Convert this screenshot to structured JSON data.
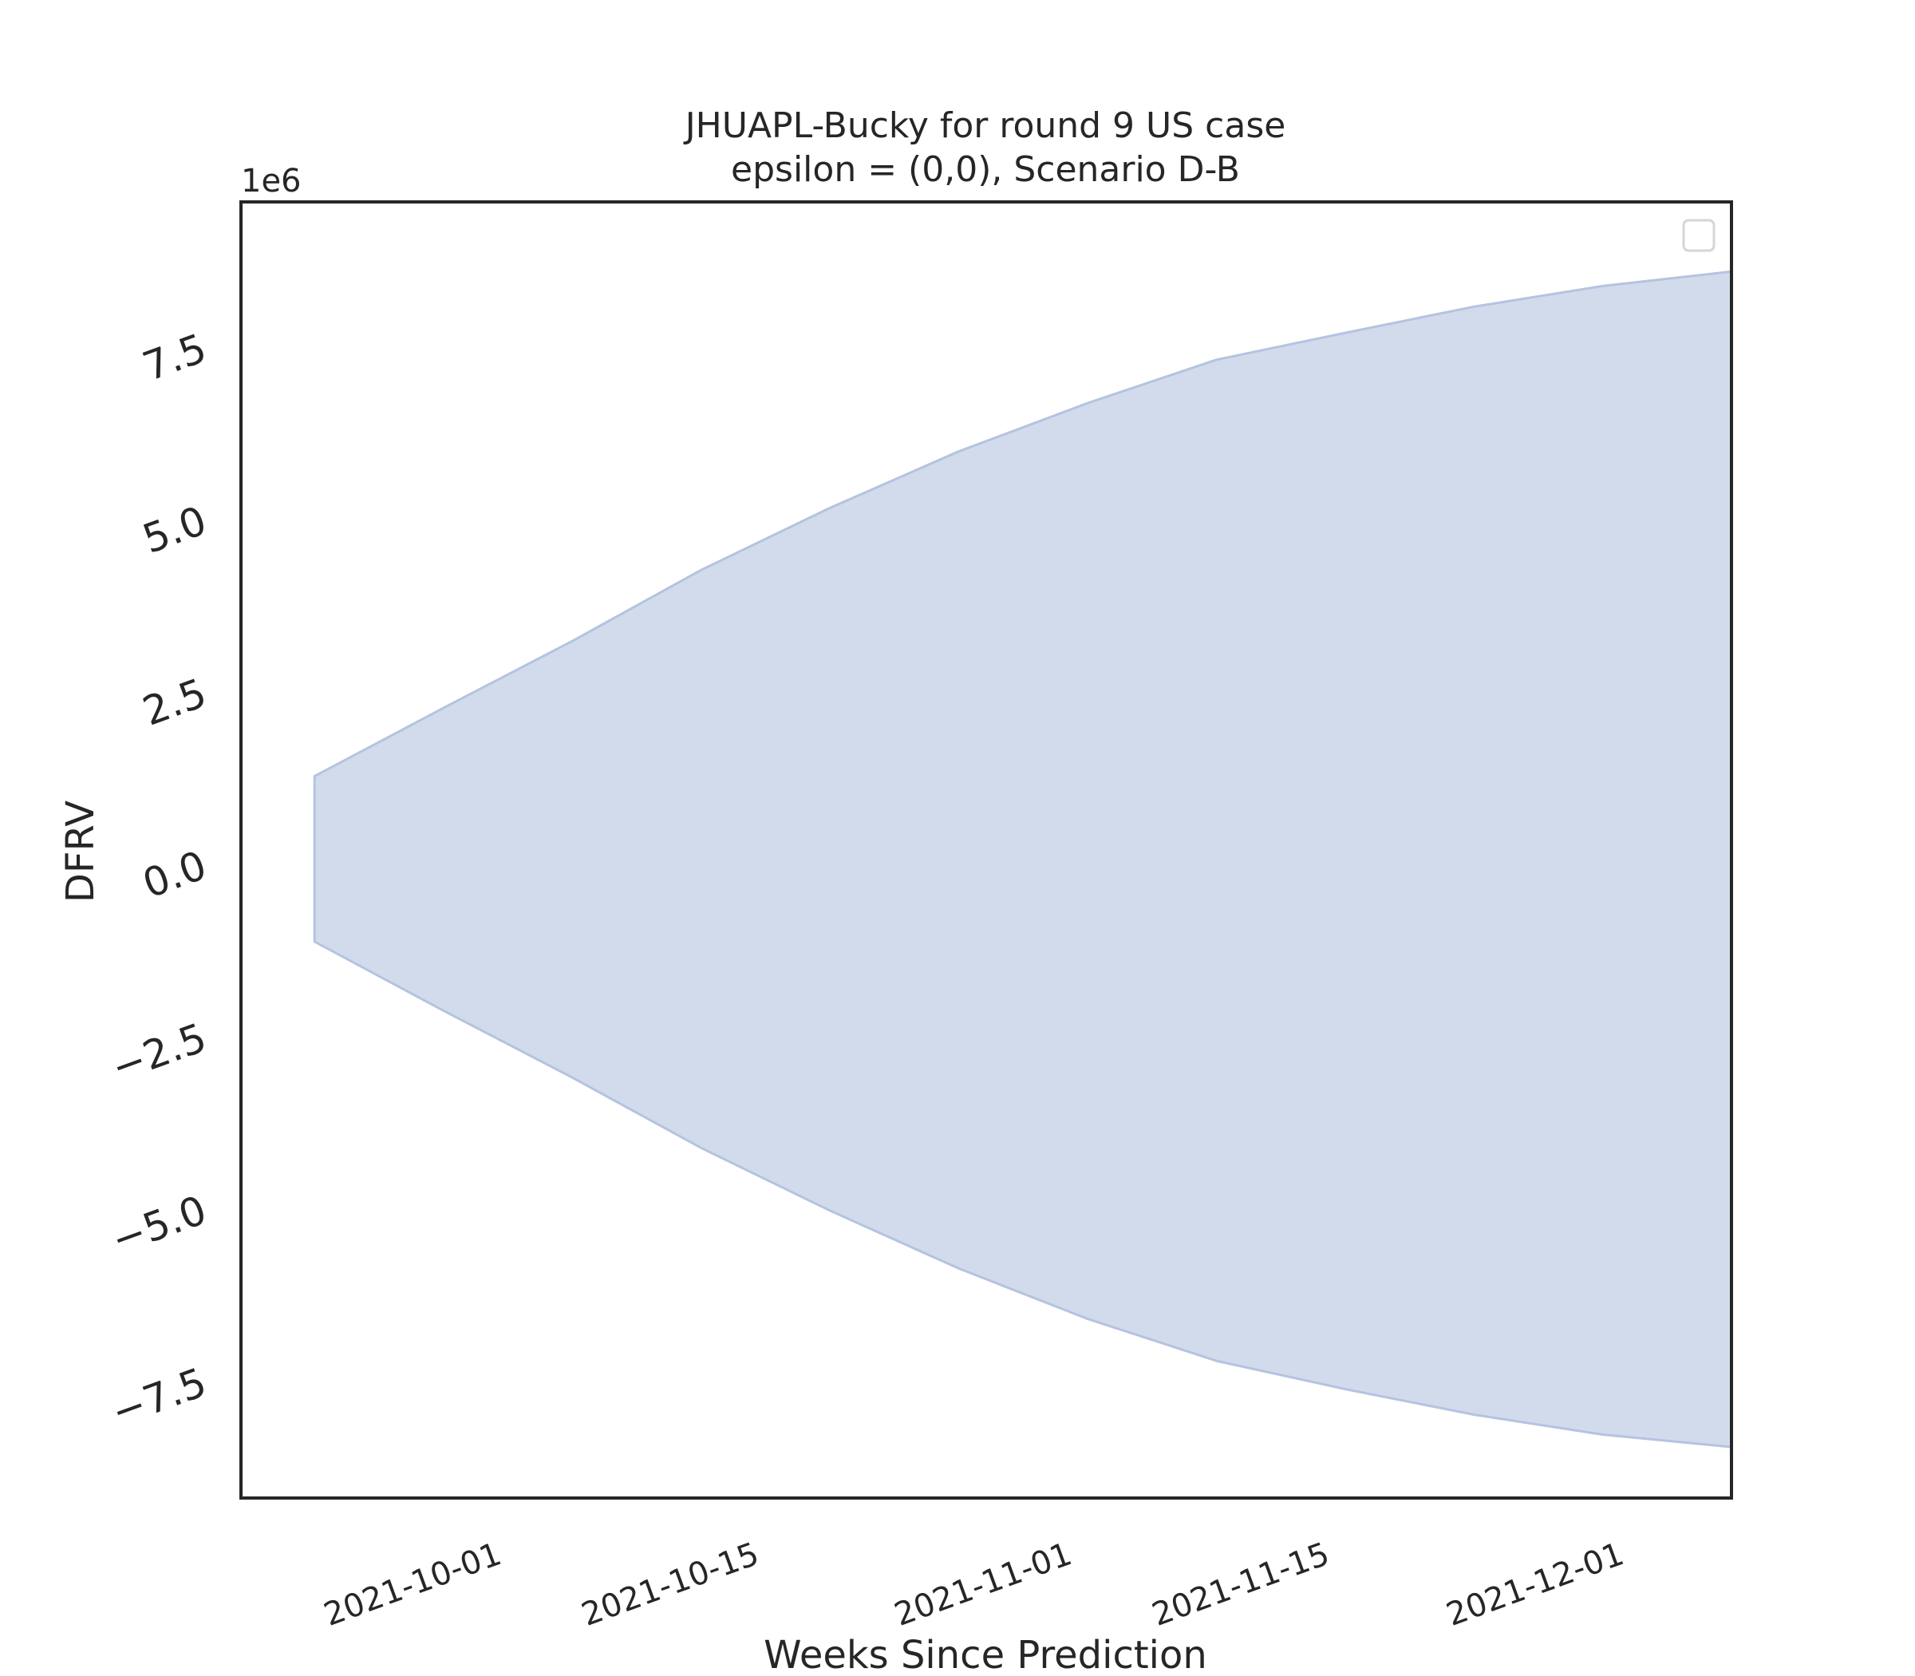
{
  "chart_data": {
    "type": "area",
    "title": "JHUAPL-Bucky for round 9 US case",
    "subtitle": "epsilon = (0,0), Scenario D-B",
    "xlabel": "Weeks Since Prediction",
    "ylabel": "DFRV",
    "y_offset_label": "1e6",
    "x_ticks": [
      "2021-10-01",
      "2021-10-15",
      "2021-11-01",
      "2021-11-15",
      "2021-12-01"
    ],
    "y_ticks": [
      -7.5,
      -5.0,
      -2.5,
      0.0,
      2.5,
      5.0,
      7.5
    ],
    "xlim": [
      "2021-09-17",
      "2021-12-07"
    ],
    "ylim": [
      -9.2,
      9.6
    ],
    "y_unit_multiplier": 1000000,
    "band": {
      "x": [
        "2021-09-21",
        "2021-09-28",
        "2021-10-05",
        "2021-10-12",
        "2021-10-19",
        "2021-10-26",
        "2021-11-02",
        "2021-11-09",
        "2021-11-16",
        "2021-11-23",
        "2021-11-30",
        "2021-12-07"
      ],
      "upper": [
        1.27,
        2.26,
        3.23,
        4.26,
        5.16,
        5.98,
        6.68,
        7.31,
        7.7,
        8.08,
        8.38,
        8.59
      ],
      "lower": [
        -1.13,
        -2.13,
        -3.1,
        -4.12,
        -5.03,
        -5.87,
        -6.6,
        -7.21,
        -7.62,
        -7.99,
        -8.28,
        -8.46
      ],
      "fill_color": "#d1dbec",
      "edge_color": "#b4c3e0"
    },
    "legend": {
      "entries": [],
      "placement": "top-right"
    },
    "grid": false
  }
}
